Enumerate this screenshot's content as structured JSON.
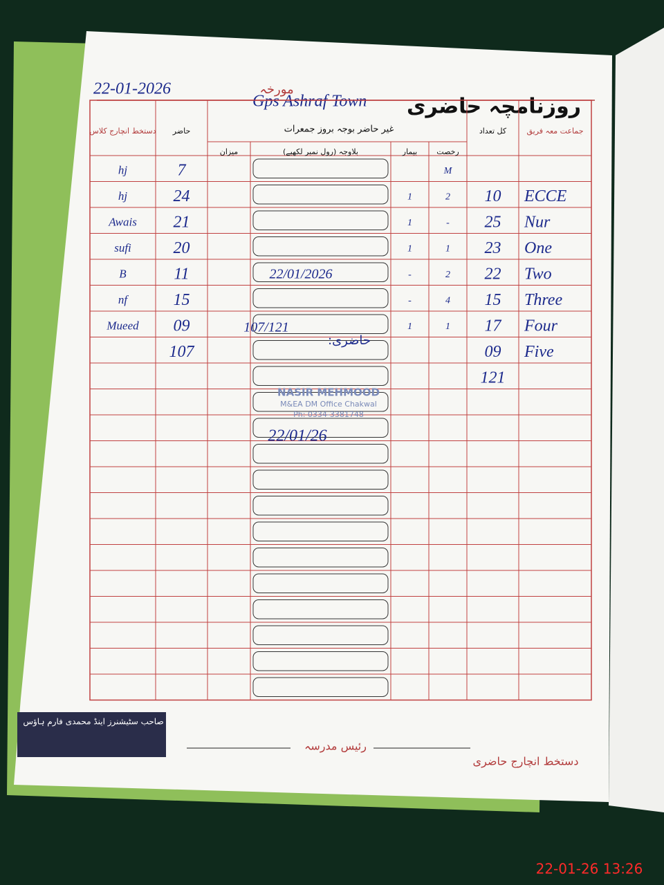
{
  "header": {
    "title": "روزنامچہ حاضری",
    "date_label": "مورخہ",
    "date": "22-01-2026",
    "school": "Gps Ashraf Town"
  },
  "table": {
    "columns": {
      "class": "جماعت معہ فریق",
      "total": "کل تعداد",
      "leave": "رخصت",
      "sick": "بیمار",
      "absent_reason": "بلاوجہ (رول نمبر لکھیے)",
      "sum": "میزان",
      "present": "حاضر",
      "signature": "دستخط انچارج کلاس"
    },
    "group_header": "غیر حاضر بوجہ بروز جمعرات",
    "rows": [
      {
        "leave": "M",
        "present": "7",
        "signature": "hj"
      },
      {
        "class": "ECCE",
        "total": "10",
        "sick": "1",
        "leave": "2",
        "present": "24",
        "signature": "hj"
      },
      {
        "class": "Nur",
        "total": "25",
        "sick": "1",
        "leave": "-",
        "present": "21",
        "signature": "Awais"
      },
      {
        "class": "One",
        "total": "23",
        "sick": "1",
        "leave": "1",
        "present": "20",
        "signature": "sufi"
      },
      {
        "class": "Two",
        "total": "22",
        "sick": "-",
        "leave": "2",
        "present": "11",
        "signature": "B"
      },
      {
        "class": "Three",
        "total": "15",
        "sick": "-",
        "leave": "4",
        "present": "15",
        "signature": "nf"
      },
      {
        "class": "Four",
        "total": "17",
        "sick": "1",
        "leave": "1",
        "present": "09",
        "signature": "Mueed"
      },
      {
        "class": "Five",
        "total": "09",
        "present": "107"
      },
      {
        "total": "121"
      }
    ]
  },
  "annotations": {
    "sign_date": "22/01/2026",
    "ratio": "107/121",
    "ratio_label": "حاضری:",
    "stamp_name": "NASIR MEHMOOD",
    "stamp_office": "M&EA DM Office Chakwal",
    "stamp_phone": "Ph: 0334-3381748",
    "stamp_date": "22/01/26"
  },
  "footer": {
    "principal": "رئیس مدرسہ",
    "attendance_incharge": "دستخط انچارج حاضری",
    "publisher": "صاحب سٹیشنرز اینڈ محمدی فارم ہاؤس"
  },
  "timestamp": "22-01-26 13:26"
}
